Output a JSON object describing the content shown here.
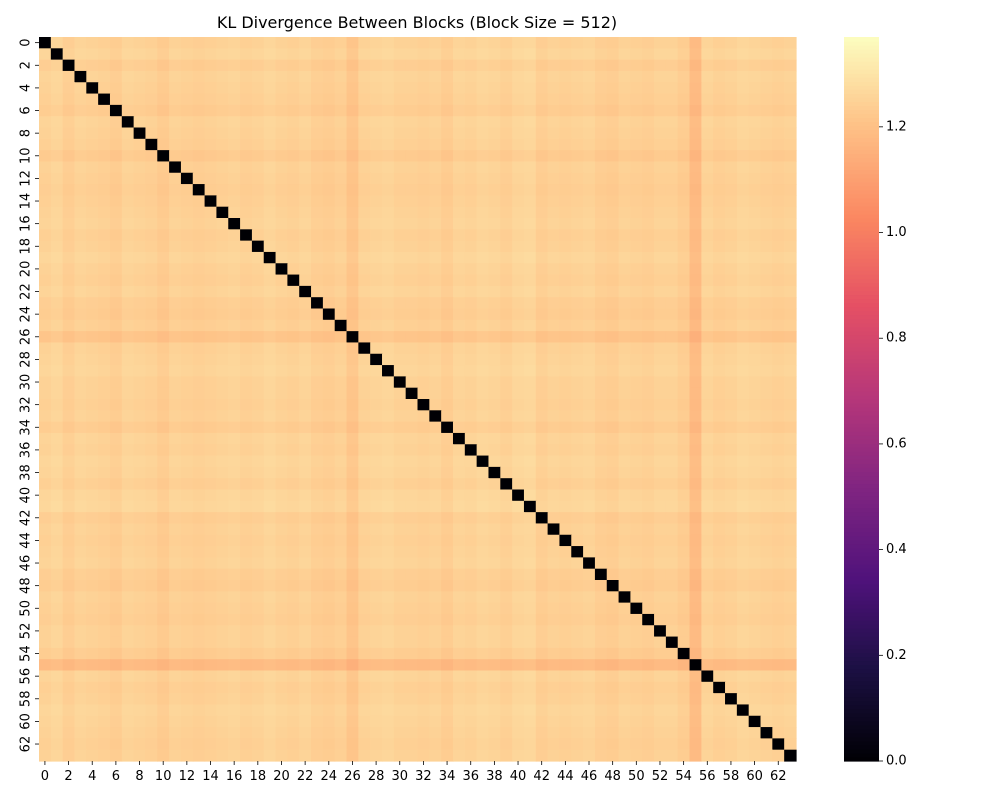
{
  "chart_data": {
    "type": "heatmap",
    "title": "KL Divergence Between Blocks (Block Size = 512)",
    "xlabel": "",
    "ylabel": "",
    "n": 64,
    "x_tick_labels": [
      "0",
      "2",
      "4",
      "6",
      "8",
      "10",
      "12",
      "14",
      "16",
      "18",
      "20",
      "22",
      "24",
      "26",
      "28",
      "30",
      "32",
      "34",
      "36",
      "38",
      "40",
      "42",
      "44",
      "46",
      "48",
      "50",
      "52",
      "54",
      "56",
      "58",
      "60",
      "62"
    ],
    "y_tick_labels": [
      "0",
      "2",
      "4",
      "6",
      "8",
      "10",
      "12",
      "14",
      "16",
      "18",
      "20",
      "22",
      "24",
      "26",
      "28",
      "30",
      "32",
      "34",
      "36",
      "38",
      "40",
      "42",
      "44",
      "46",
      "48",
      "50",
      "52",
      "54",
      "56",
      "58",
      "60",
      "62"
    ],
    "diagonal_value": 0.0,
    "typical_value_range": [
      1.12,
      1.38
    ],
    "row_values_approx": [
      1.25,
      1.27,
      1.23,
      1.26,
      1.25,
      1.24,
      1.22,
      1.26,
      1.25,
      1.24,
      1.21,
      1.25,
      1.24,
      1.23,
      1.24,
      1.25,
      1.26,
      1.24,
      1.25,
      1.27,
      1.25,
      1.24,
      1.26,
      1.23,
      1.22,
      1.24,
      1.18,
      1.25,
      1.26,
      1.27,
      1.25,
      1.25,
      1.24,
      1.25,
      1.22,
      1.26,
      1.25,
      1.27,
      1.26,
      1.24,
      1.27,
      1.28,
      1.23,
      1.25,
      1.24,
      1.25,
      1.26,
      1.23,
      1.22,
      1.25,
      1.24,
      1.23,
      1.25,
      1.25,
      1.22,
      1.12,
      1.26,
      1.24,
      1.25,
      1.27,
      1.26,
      1.25,
      1.24,
      1.25
    ],
    "colorbar": {
      "colormap": "magma",
      "vmin": 0.0,
      "vmax": 1.37,
      "ticks": [
        0.0,
        0.2,
        0.4,
        0.6,
        0.8,
        1.0,
        1.2
      ],
      "tick_labels": [
        "0.0",
        "0.2",
        "0.4",
        "0.6",
        "0.8",
        "1.0",
        "1.2"
      ]
    }
  }
}
